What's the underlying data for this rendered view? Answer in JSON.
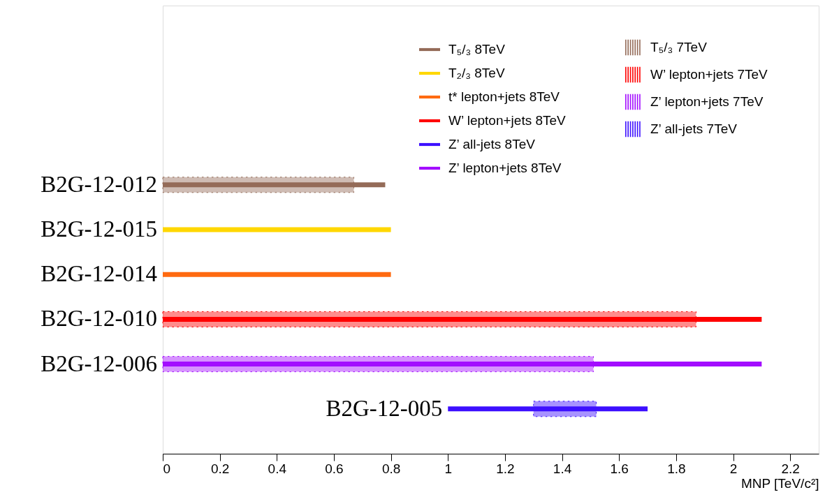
{
  "chart_data": {
    "type": "bar",
    "orientation": "horizontal",
    "tick_labels": "x",
    "grid": false,
    "legend": "top right",
    "xlabel": "MNP [TeV/c²]",
    "xlim": [
      0,
      2.3
    ],
    "xticks": [
      0,
      0.2,
      0.4,
      0.6,
      0.8,
      1,
      1.2,
      1.4,
      1.6,
      1.8,
      2,
      2.2
    ],
    "categories": [
      null,
      null,
      null,
      "B2G-12-012",
      "B2G-12-015",
      "B2G-12-014",
      "B2G-12-010",
      "B2G-12-006",
      "B2G-12-005"
    ],
    "series": [
      {
        "name": "T₅/₃ 8TeV",
        "color": "#946b58",
        "line_style": "solid",
        "values": [
          null,
          null,
          null,
          0.78,
          null,
          null,
          null,
          null,
          null
        ],
        "base": [
          null,
          null,
          null,
          0,
          null,
          null,
          null,
          null,
          null
        ]
      },
      {
        "name": "T₂/₃ 8TeV",
        "color": "#ffd700",
        "line_style": "solid",
        "values": [
          null,
          null,
          null,
          null,
          0.8,
          null,
          null,
          null,
          null
        ],
        "base": [
          null,
          null,
          null,
          null,
          0,
          null,
          null,
          null,
          null
        ]
      },
      {
        "name": "t* lepton+jets 8TeV",
        "color": "#ff6a10",
        "line_style": "solid",
        "values": [
          null,
          null,
          null,
          null,
          null,
          0.8,
          null,
          null,
          null
        ],
        "base": [
          null,
          null,
          null,
          null,
          null,
          0,
          null,
          null,
          null
        ]
      },
      {
        "name": "W’ lepton+jets 8TeV",
        "color": "#ff0000",
        "line_style": "solid",
        "values": [
          null,
          null,
          null,
          null,
          null,
          null,
          2.1,
          null,
          null
        ],
        "base": [
          null,
          null,
          null,
          null,
          null,
          null,
          0,
          null,
          null
        ]
      },
      {
        "name": "Z’ all-jets 8TeV",
        "color": "#3d10ff",
        "line_style": "solid",
        "values": [
          null,
          null,
          null,
          null,
          null,
          null,
          null,
          null,
          0.7
        ],
        "base": [
          null,
          null,
          null,
          null,
          null,
          null,
          null,
          null,
          1.0
        ]
      },
      {
        "name": "Z’ lepton+jets 8TeV",
        "color": "#a30dff",
        "line_style": "solid",
        "values": [
          null,
          null,
          null,
          null,
          null,
          null,
          null,
          2.1,
          null
        ],
        "base": [
          null,
          null,
          null,
          null,
          null,
          null,
          null,
          0,
          null
        ]
      },
      {
        "name": "T₅/₃ 7TeV",
        "color": "#946b58",
        "line_style": "dashed",
        "values": [
          null,
          null,
          null,
          0.67,
          null,
          null,
          null,
          null,
          null
        ],
        "base": [
          null,
          null,
          null,
          0,
          null,
          null,
          null,
          null,
          null
        ]
      },
      {
        "name": "W’ lepton+jets 7TeV",
        "color": "#ff0000",
        "line_style": "dashed",
        "values": [
          null,
          null,
          null,
          null,
          null,
          null,
          1.87,
          null,
          null
        ],
        "base": [
          null,
          null,
          null,
          null,
          null,
          null,
          0,
          null,
          null
        ]
      },
      {
        "name": "Z’ lepton+jets 7TeV",
        "color": "#a30dff",
        "line_style": "dashed",
        "values": [
          null,
          null,
          null,
          null,
          null,
          null,
          null,
          1.51,
          null
        ],
        "base": [
          null,
          null,
          null,
          null,
          null,
          null,
          null,
          0,
          null
        ]
      },
      {
        "name": "Z’ all-jets 7TeV",
        "color": "#3d10ff",
        "line_style": "dashed",
        "values": [
          null,
          null,
          null,
          null,
          null,
          null,
          null,
          null,
          0.22
        ],
        "base": [
          null,
          null,
          null,
          null,
          null,
          null,
          null,
          null,
          1.3
        ]
      }
    ]
  }
}
